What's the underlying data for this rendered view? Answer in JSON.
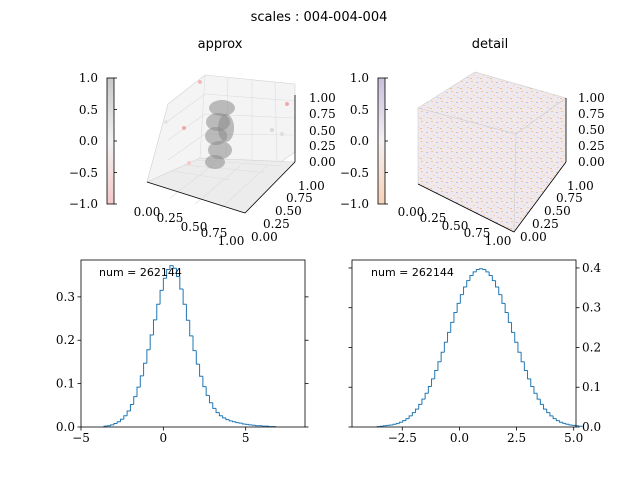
{
  "figure": {
    "title": "scales : 004-004-004"
  },
  "panels": {
    "approx": {
      "title": "approx",
      "colorbar": {
        "ticks": [
          "1.0",
          "0.5",
          "0.0",
          "−0.5",
          "−1.0"
        ],
        "values": [
          1.0,
          0.5,
          0.0,
          -0.5,
          -1.0
        ]
      },
      "axis_x_ticks": [
        "0.00",
        "0.25",
        "0.50",
        "0.75",
        "1.00"
      ],
      "axis_y_ticks": [
        "0.00",
        "0.25",
        "0.50",
        "0.75",
        "1.00"
      ],
      "axis_z_ticks": [
        "0.00",
        "0.25",
        "0.50",
        "0.75",
        "1.00"
      ]
    },
    "detail": {
      "title": "detail",
      "colorbar": {
        "ticks": [
          "1.0",
          "0.5",
          "0.0",
          "−0.5",
          "−1.0"
        ],
        "values": [
          1.0,
          0.5,
          0.0,
          -0.5,
          -1.0
        ]
      },
      "axis_x_ticks": [
        "0.00",
        "0.25",
        "0.50",
        "0.75",
        "1.00"
      ],
      "axis_y_ticks": [
        "0.00",
        "0.25",
        "0.50",
        "0.75",
        "1.00"
      ],
      "axis_z_ticks": [
        "0.00",
        "0.25",
        "0.50",
        "0.75",
        "1.00"
      ]
    }
  },
  "chart_data": [
    {
      "type": "bar",
      "subtype": "step-histogram",
      "panel": "approx-histogram",
      "annotation": "num = 262144",
      "xlim": [
        -5,
        8.6
      ],
      "ylim": [
        0,
        0.385
      ],
      "xticks": [
        -5,
        0,
        5
      ],
      "xtick_labels": [
        "−5",
        "0",
        "5"
      ],
      "yticks": [
        0.0,
        0.1,
        0.2,
        0.3
      ],
      "ytick_labels": [
        "0.0",
        "0.1",
        "0.2",
        "0.3"
      ],
      "bins": {
        "start": -3.6,
        "width": 0.2
      },
      "values": [
        0.002,
        0.003,
        0.005,
        0.008,
        0.012,
        0.018,
        0.026,
        0.037,
        0.052,
        0.07,
        0.092,
        0.118,
        0.147,
        0.178,
        0.212,
        0.247,
        0.283,
        0.315,
        0.343,
        0.363,
        0.372,
        0.366,
        0.347,
        0.318,
        0.283,
        0.246,
        0.21,
        0.176,
        0.145,
        0.117,
        0.093,
        0.073,
        0.056,
        0.043,
        0.033,
        0.026,
        0.021,
        0.017,
        0.014,
        0.012,
        0.01,
        0.009,
        0.007,
        0.006,
        0.005,
        0.004,
        0.003,
        0.003,
        0.002,
        0.002,
        0.001,
        0.001
      ]
    },
    {
      "type": "bar",
      "subtype": "step-histogram",
      "panel": "detail-histogram",
      "annotation": "num = 262144",
      "xlim": [
        -4.7,
        5.1
      ],
      "ylim": [
        0,
        0.42
      ],
      "xticks": [
        -2.5,
        0,
        2.5,
        5
      ],
      "xtick_labels": [
        "−2.5",
        "0.0",
        "2.5",
        "5.0"
      ],
      "yticks": [
        0.0,
        0.1,
        0.2,
        0.3,
        0.4
      ],
      "ytick_labels": [
        "0.0",
        "0.1",
        "0.2",
        "0.3",
        "0.4"
      ],
      "bins": {
        "start": -3.6,
        "width": 0.14
      },
      "values": [
        0.001,
        0.002,
        0.003,
        0.004,
        0.005,
        0.007,
        0.009,
        0.012,
        0.016,
        0.021,
        0.028,
        0.036,
        0.045,
        0.057,
        0.07,
        0.085,
        0.102,
        0.121,
        0.142,
        0.164,
        0.188,
        0.213,
        0.238,
        0.263,
        0.288,
        0.311,
        0.333,
        0.352,
        0.368,
        0.381,
        0.39,
        0.396,
        0.398,
        0.396,
        0.39,
        0.381,
        0.368,
        0.352,
        0.333,
        0.311,
        0.288,
        0.263,
        0.238,
        0.213,
        0.188,
        0.164,
        0.142,
        0.121,
        0.102,
        0.085,
        0.07,
        0.057,
        0.045,
        0.036,
        0.028,
        0.021,
        0.016,
        0.012,
        0.009,
        0.007,
        0.005,
        0.004,
        0.003,
        0.002
      ]
    }
  ]
}
